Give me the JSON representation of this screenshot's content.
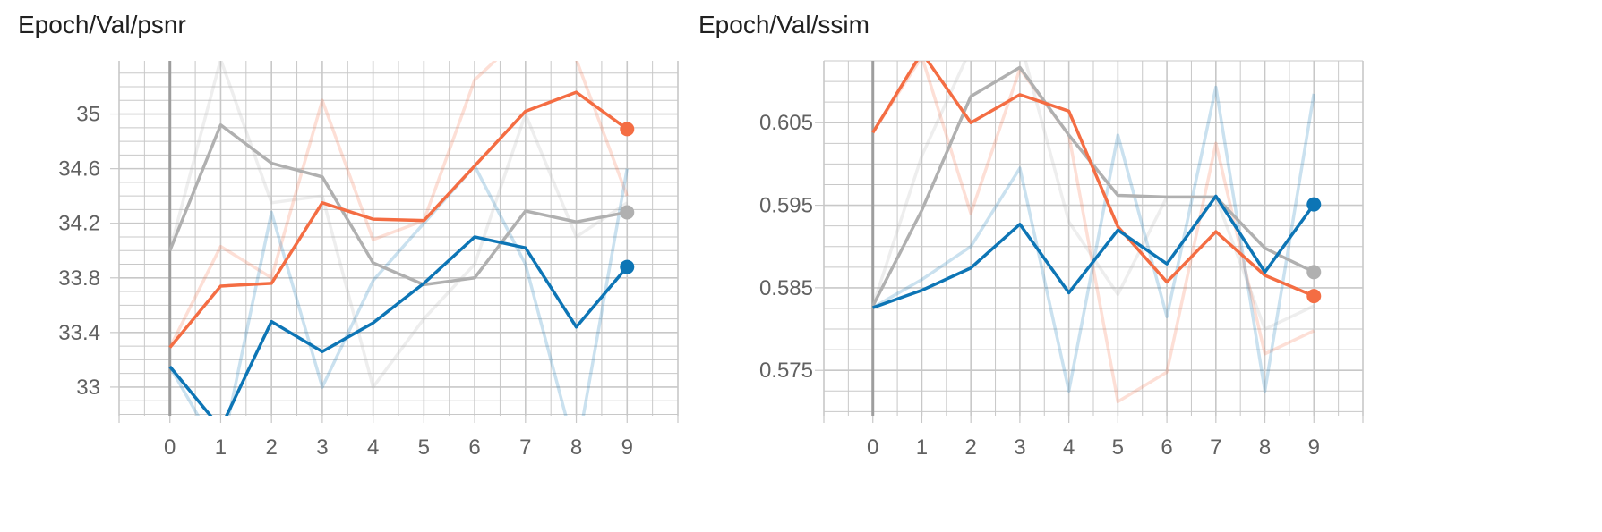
{
  "colors": {
    "orange": "#f46d43",
    "grey": "#b0b0b0",
    "blue": "#0d75b5",
    "grid": "#c8c8c8",
    "axis": "#9e9e9e"
  },
  "chart_data": [
    {
      "type": "line",
      "title": "Epoch/Val/psnr",
      "xlabel": "",
      "ylabel": "",
      "x": [
        0,
        1,
        2,
        3,
        4,
        5,
        6,
        7,
        8,
        9
      ],
      "xlim": [
        -1,
        10
      ],
      "ylim": [
        32.79,
        35.39
      ],
      "yticks": [
        33,
        33.4,
        33.8,
        34.2,
        34.6,
        35
      ],
      "ytick_labels": [
        "33",
        "33.4",
        "33.8",
        "34.2",
        "34.6",
        "35"
      ],
      "xtick_labels": [
        "0",
        "1",
        "2",
        "3",
        "4",
        "5",
        "6",
        "7",
        "8",
        "9"
      ],
      "grid": true,
      "series": [
        {
          "color_key": "grey",
          "values": [
            34.0,
            34.92,
            34.64,
            34.54,
            33.91,
            33.75,
            33.8,
            34.29,
            34.21,
            34.28
          ],
          "raw": [
            34.0,
            35.4,
            34.35,
            34.4,
            33.0,
            33.5,
            33.9,
            35.0,
            34.1,
            34.35
          ]
        },
        {
          "color_key": "orange",
          "values": [
            33.29,
            33.74,
            33.76,
            34.35,
            34.23,
            34.22,
            34.62,
            35.02,
            35.16,
            34.89
          ],
          "raw": [
            33.29,
            34.03,
            33.8,
            35.1,
            34.08,
            34.22,
            35.25,
            35.6,
            35.4,
            34.4
          ]
        },
        {
          "color_key": "blue",
          "values": [
            33.15,
            32.7,
            33.48,
            33.26,
            33.47,
            33.76,
            34.1,
            34.02,
            33.44,
            33.88
          ],
          "raw": [
            33.15,
            32.5,
            34.28,
            33.0,
            33.78,
            34.2,
            34.62,
            33.9,
            32.5,
            34.6
          ]
        }
      ]
    },
    {
      "type": "line",
      "title": "Epoch/Val/ssim",
      "xlabel": "",
      "ylabel": "",
      "x": [
        0,
        1,
        2,
        3,
        4,
        5,
        6,
        7,
        8,
        9
      ],
      "xlim": [
        -1,
        10
      ],
      "ylim": [
        0.5695,
        0.6125
      ],
      "yticks": [
        0.575,
        0.585,
        0.595,
        0.605
      ],
      "ytick_labels": [
        "0.575",
        "0.585",
        "0.595",
        "0.605"
      ],
      "xtick_labels": [
        "0",
        "1",
        "2",
        "3",
        "4",
        "5",
        "6",
        "7",
        "8",
        "9"
      ],
      "grid": true,
      "series": [
        {
          "color_key": "grey",
          "values": [
            0.5828,
            0.5944,
            0.6082,
            0.6117,
            0.6035,
            0.5962,
            0.596,
            0.596,
            0.5898,
            0.5869
          ],
          "raw": [
            0.5828,
            0.601,
            0.614,
            0.615,
            0.593,
            0.5842,
            0.596,
            0.596,
            0.58,
            0.5828
          ]
        },
        {
          "color_key": "orange",
          "values": [
            0.6038,
            0.6135,
            0.605,
            0.6084,
            0.6064,
            0.5924,
            0.5857,
            0.5918,
            0.5865,
            0.584
          ],
          "raw": [
            0.6038,
            0.613,
            0.594,
            0.6115,
            0.6035,
            0.5712,
            0.5748,
            0.6025,
            0.577,
            0.5798
          ]
        },
        {
          "color_key": "blue",
          "values": [
            0.5826,
            0.5847,
            0.5874,
            0.5927,
            0.5844,
            0.592,
            0.5879,
            0.5961,
            0.5869,
            0.5951
          ],
          "raw": [
            0.5826,
            0.586,
            0.59,
            0.5995,
            0.5725,
            0.6035,
            0.5815,
            0.6093,
            0.5725,
            0.6085
          ]
        }
      ]
    }
  ]
}
